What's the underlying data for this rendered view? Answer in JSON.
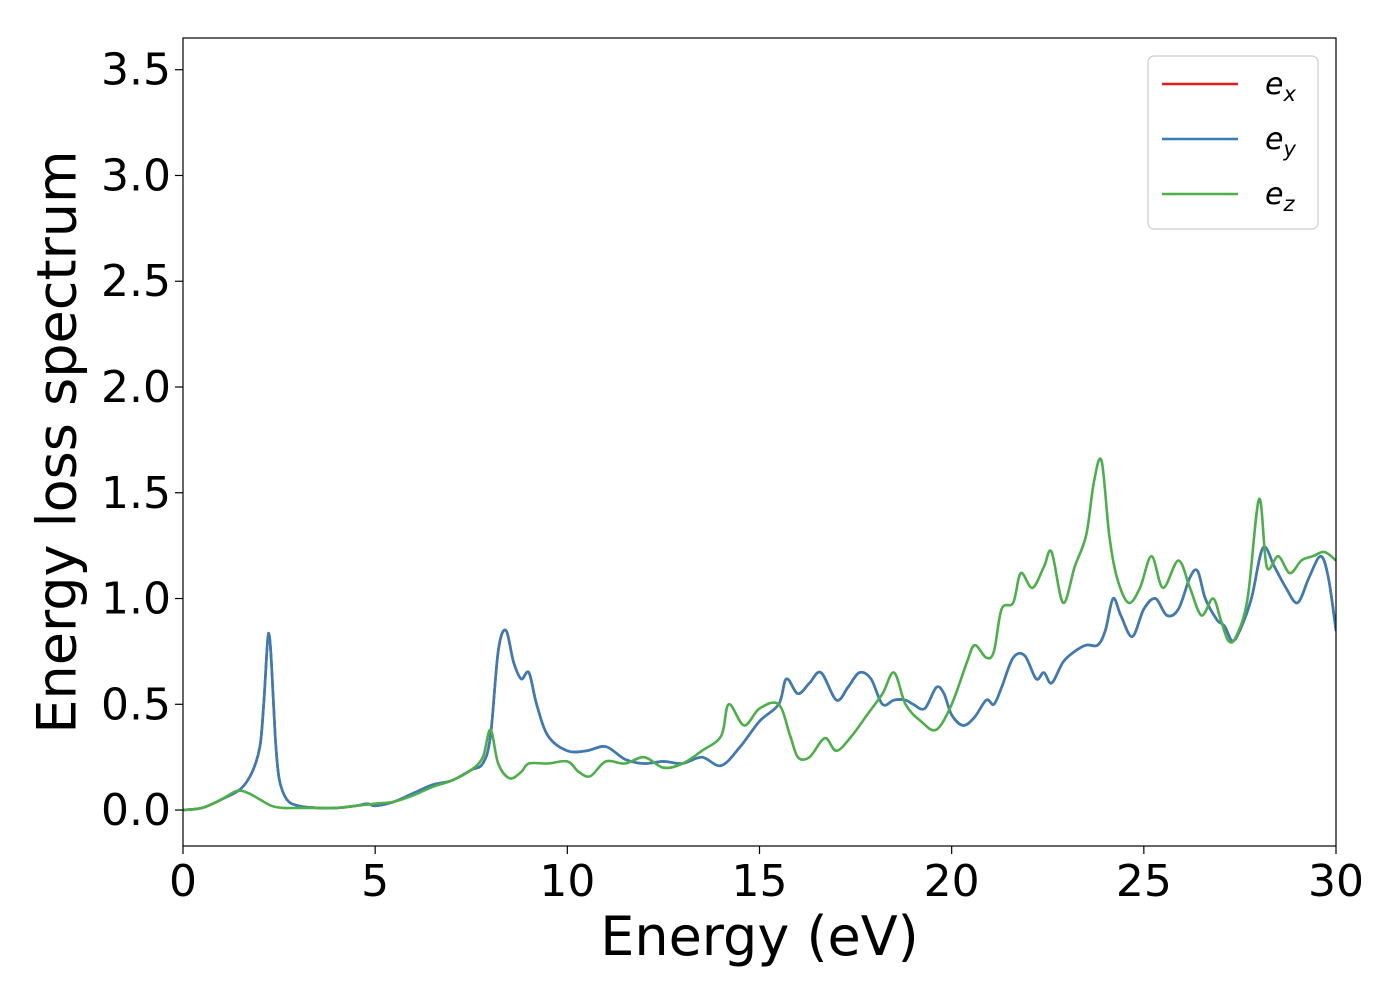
{
  "chart_data": {
    "type": "line",
    "title": "",
    "xlabel": "Energy (eV)",
    "ylabel": "Energy loss spectrum",
    "xlim": [
      0,
      30
    ],
    "ylim": [
      -0.17,
      3.65
    ],
    "xticks": [
      0,
      5,
      10,
      15,
      20,
      25,
      30
    ],
    "xtick_labels": [
      "0",
      "5",
      "10",
      "15",
      "20",
      "25",
      "30"
    ],
    "yticks": [
      0.0,
      0.5,
      1.0,
      1.5,
      2.0,
      2.5,
      3.0,
      3.5
    ],
    "ytick_labels": [
      "0.0",
      "0.5",
      "1.0",
      "1.5",
      "2.0",
      "2.5",
      "3.0",
      "3.5"
    ],
    "grid": false,
    "legend_position": "top-right",
    "series": [
      {
        "name": "e_x",
        "label_base": "e",
        "label_sub": "x",
        "color": "#e41a1c",
        "x": [
          0,
          0.5,
          1.0,
          1.5,
          1.8,
          2.0,
          2.1,
          2.2,
          2.25,
          2.3,
          2.4,
          2.5,
          2.7,
          3.0,
          3.5,
          4.0,
          4.5,
          4.8,
          5.0,
          5.5,
          6.0,
          6.5,
          7.0,
          7.5,
          7.8,
          8.0,
          8.2,
          8.4,
          8.6,
          8.8,
          9.0,
          9.2,
          9.5,
          10.0,
          10.5,
          11.0,
          11.5,
          12.0,
          12.5,
          13.0,
          13.5,
          14.0,
          14.5,
          15.0,
          15.5,
          15.7,
          16.0,
          16.3,
          16.6,
          17.0,
          17.3,
          17.6,
          17.9,
          18.2,
          18.5,
          18.8,
          19.0,
          19.3,
          19.6,
          19.8,
          20.0,
          20.3,
          20.6,
          20.9,
          21.1,
          21.3,
          21.6,
          21.9,
          22.2,
          22.4,
          22.6,
          22.9,
          23.2,
          23.5,
          23.8,
          24.0,
          24.2,
          24.4,
          24.7,
          25.0,
          25.3,
          25.6,
          25.9,
          26.2,
          26.4,
          26.6,
          26.9,
          27.1,
          27.3,
          27.5,
          27.8,
          28.1,
          28.4,
          28.7,
          29.0,
          29.3,
          29.6,
          29.8,
          30.0
        ],
        "y": [
          0.0,
          0.01,
          0.05,
          0.1,
          0.18,
          0.3,
          0.5,
          0.8,
          0.82,
          0.7,
          0.35,
          0.15,
          0.05,
          0.02,
          0.01,
          0.01,
          0.02,
          0.03,
          0.02,
          0.04,
          0.08,
          0.12,
          0.14,
          0.19,
          0.22,
          0.35,
          0.75,
          0.85,
          0.7,
          0.62,
          0.65,
          0.5,
          0.35,
          0.28,
          0.28,
          0.3,
          0.24,
          0.22,
          0.23,
          0.22,
          0.25,
          0.21,
          0.3,
          0.42,
          0.5,
          0.62,
          0.55,
          0.6,
          0.65,
          0.52,
          0.58,
          0.65,
          0.62,
          0.5,
          0.52,
          0.52,
          0.5,
          0.48,
          0.58,
          0.55,
          0.45,
          0.4,
          0.44,
          0.52,
          0.5,
          0.58,
          0.72,
          0.73,
          0.62,
          0.65,
          0.6,
          0.7,
          0.75,
          0.78,
          0.78,
          0.85,
          1.0,
          0.92,
          0.82,
          0.95,
          1.0,
          0.92,
          0.95,
          1.1,
          1.13,
          1.0,
          0.9,
          0.87,
          0.8,
          0.85,
          1.0,
          1.24,
          1.15,
          1.05,
          0.98,
          1.1,
          1.2,
          1.1,
          0.85
        ]
      },
      {
        "name": "e_y",
        "label_base": "e",
        "label_sub": "y",
        "color": "#377eb8",
        "x": [
          0,
          0.5,
          1.0,
          1.5,
          1.8,
          2.0,
          2.1,
          2.2,
          2.25,
          2.3,
          2.4,
          2.5,
          2.7,
          3.0,
          3.5,
          4.0,
          4.5,
          4.8,
          5.0,
          5.5,
          6.0,
          6.5,
          7.0,
          7.5,
          7.8,
          8.0,
          8.2,
          8.4,
          8.6,
          8.8,
          9.0,
          9.2,
          9.5,
          10.0,
          10.5,
          11.0,
          11.5,
          12.0,
          12.5,
          13.0,
          13.5,
          14.0,
          14.5,
          15.0,
          15.5,
          15.7,
          16.0,
          16.3,
          16.6,
          17.0,
          17.3,
          17.6,
          17.9,
          18.2,
          18.5,
          18.8,
          19.0,
          19.3,
          19.6,
          19.8,
          20.0,
          20.3,
          20.6,
          20.9,
          21.1,
          21.3,
          21.6,
          21.9,
          22.2,
          22.4,
          22.6,
          22.9,
          23.2,
          23.5,
          23.8,
          24.0,
          24.2,
          24.4,
          24.7,
          25.0,
          25.3,
          25.6,
          25.9,
          26.2,
          26.4,
          26.6,
          26.9,
          27.1,
          27.3,
          27.5,
          27.8,
          28.1,
          28.4,
          28.7,
          29.0,
          29.3,
          29.6,
          29.8,
          30.0
        ],
        "y": [
          0.0,
          0.01,
          0.05,
          0.1,
          0.18,
          0.3,
          0.5,
          0.8,
          0.82,
          0.7,
          0.35,
          0.15,
          0.05,
          0.02,
          0.01,
          0.01,
          0.02,
          0.03,
          0.02,
          0.04,
          0.08,
          0.12,
          0.14,
          0.19,
          0.22,
          0.35,
          0.75,
          0.85,
          0.7,
          0.62,
          0.65,
          0.5,
          0.35,
          0.28,
          0.28,
          0.3,
          0.24,
          0.22,
          0.23,
          0.22,
          0.25,
          0.21,
          0.3,
          0.42,
          0.5,
          0.62,
          0.55,
          0.6,
          0.65,
          0.52,
          0.58,
          0.65,
          0.62,
          0.5,
          0.52,
          0.52,
          0.5,
          0.48,
          0.58,
          0.55,
          0.45,
          0.4,
          0.44,
          0.52,
          0.5,
          0.58,
          0.72,
          0.73,
          0.62,
          0.65,
          0.6,
          0.7,
          0.75,
          0.78,
          0.78,
          0.85,
          1.0,
          0.92,
          0.82,
          0.95,
          1.0,
          0.92,
          0.95,
          1.1,
          1.13,
          1.0,
          0.9,
          0.87,
          0.8,
          0.85,
          1.0,
          1.24,
          1.15,
          1.05,
          0.98,
          1.1,
          1.2,
          1.1,
          0.85
        ]
      },
      {
        "name": "e_z",
        "label_base": "e",
        "label_sub": "z",
        "color": "#4daf4a",
        "x": [
          0,
          0.5,
          1.0,
          1.4,
          1.7,
          2.0,
          2.3,
          2.6,
          3.0,
          3.5,
          4.0,
          4.5,
          5.0,
          5.5,
          6.0,
          6.5,
          7.0,
          7.5,
          7.8,
          8.0,
          8.2,
          8.5,
          8.8,
          9.0,
          9.5,
          10.0,
          10.3,
          10.6,
          11.0,
          11.5,
          12.0,
          12.5,
          13.0,
          13.5,
          14.0,
          14.2,
          14.6,
          15.0,
          15.5,
          15.8,
          16.0,
          16.3,
          16.7,
          17.0,
          17.4,
          17.8,
          18.2,
          18.5,
          18.8,
          19.2,
          19.6,
          20.0,
          20.4,
          20.6,
          20.9,
          21.1,
          21.3,
          21.6,
          21.8,
          22.1,
          22.4,
          22.6,
          22.9,
          23.2,
          23.5,
          23.7,
          23.9,
          24.1,
          24.3,
          24.6,
          24.9,
          25.2,
          25.5,
          25.9,
          26.2,
          26.5,
          26.8,
          27.0,
          27.2,
          27.4,
          27.7,
          28.0,
          28.2,
          28.5,
          28.8,
          29.1,
          29.4,
          29.7,
          30.0
        ],
        "y": [
          0.0,
          0.01,
          0.05,
          0.09,
          0.08,
          0.05,
          0.02,
          0.01,
          0.01,
          0.01,
          0.01,
          0.02,
          0.03,
          0.04,
          0.07,
          0.11,
          0.14,
          0.19,
          0.25,
          0.38,
          0.22,
          0.15,
          0.18,
          0.22,
          0.22,
          0.23,
          0.18,
          0.16,
          0.23,
          0.22,
          0.25,
          0.2,
          0.22,
          0.28,
          0.35,
          0.5,
          0.4,
          0.48,
          0.5,
          0.35,
          0.25,
          0.25,
          0.34,
          0.28,
          0.35,
          0.45,
          0.55,
          0.65,
          0.5,
          0.42,
          0.38,
          0.5,
          0.7,
          0.78,
          0.72,
          0.75,
          0.95,
          0.98,
          1.12,
          1.05,
          1.15,
          1.22,
          0.98,
          1.15,
          1.3,
          1.55,
          1.65,
          1.3,
          1.1,
          0.98,
          1.05,
          1.2,
          1.05,
          1.18,
          1.05,
          0.92,
          1.0,
          0.9,
          0.8,
          0.82,
          1.0,
          1.47,
          1.15,
          1.2,
          1.12,
          1.18,
          1.2,
          1.22,
          1.18
        ]
      }
    ]
  }
}
